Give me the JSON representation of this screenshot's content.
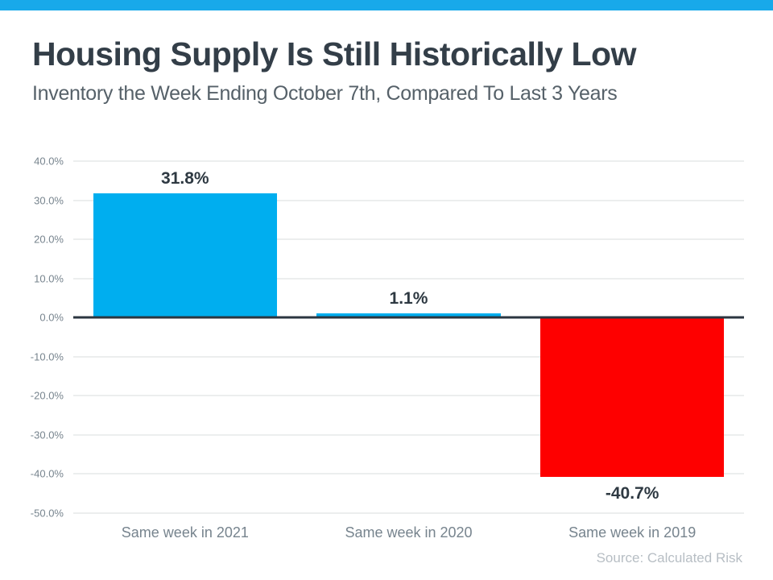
{
  "header": {
    "title": "Housing Supply Is Still Historically Low",
    "subtitle": "Inventory the Week Ending October 7th, Compared To Last 3 Years"
  },
  "chart_data": {
    "type": "bar",
    "categories": [
      "Same week in 2021",
      "Same week in 2020",
      "Same week in 2019"
    ],
    "values": [
      31.8,
      1.1,
      -40.7
    ],
    "value_labels": [
      "31.8%",
      "1.1%",
      "-40.7%"
    ],
    "bar_colors": [
      "#00AEEF",
      "#00AEEF",
      "#FE0000"
    ],
    "title": "Housing Supply Is Still Historically Low",
    "subtitle": "Inventory the Week Ending October 7th, Compared To Last 3 Years",
    "xlabel": "",
    "ylabel": "",
    "ylim": [
      -50,
      40
    ],
    "grid": true,
    "legend_position": "none",
    "yticks": [
      {
        "value": 40,
        "label": "40.0%"
      },
      {
        "value": 30,
        "label": "30.0%"
      },
      {
        "value": 20,
        "label": "20.0%"
      },
      {
        "value": 10,
        "label": "10.0%"
      },
      {
        "value": 0,
        "label": "0.0%"
      },
      {
        "value": -10,
        "label": "-10.0%"
      },
      {
        "value": -20,
        "label": "-20.0%"
      },
      {
        "value": -30,
        "label": "-30.0%"
      },
      {
        "value": -40,
        "label": "-40.0%"
      },
      {
        "value": -50,
        "label": "-50.0%"
      }
    ]
  },
  "footer": {
    "source": "Source: Calculated Risk"
  },
  "colors": {
    "accent_bar": "#18A9EA",
    "bar_positive": "#00AEEF",
    "bar_negative": "#FE0000",
    "title_text": "#333E48",
    "subtitle_text": "#566169",
    "axis_text": "#77848E",
    "value_label_text": "#2E3942",
    "gridline": "#D8DCDE",
    "zero_line": "#2B3640",
    "source_text": "#B7BEC4"
  }
}
